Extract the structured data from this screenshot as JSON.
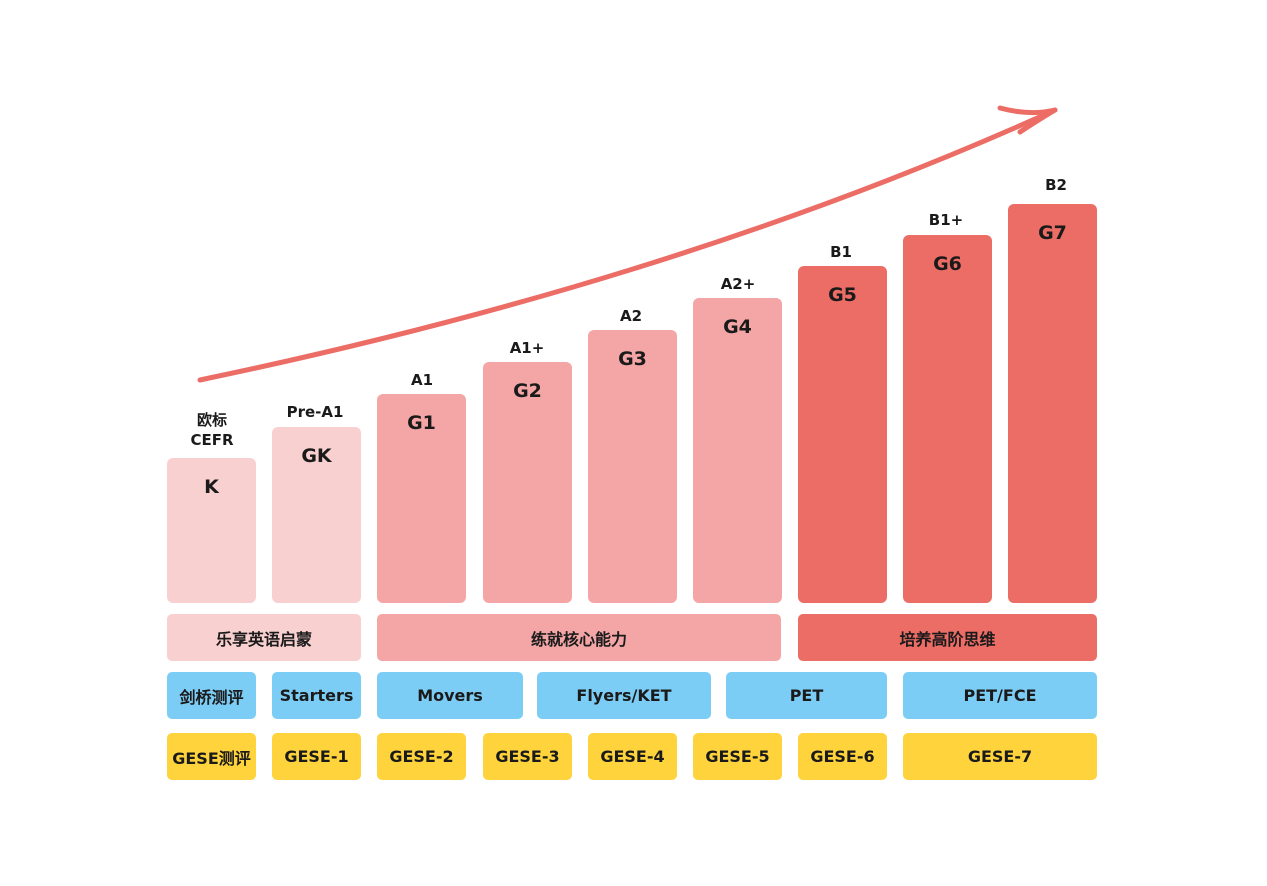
{
  "colors": {
    "light": "#f9d0d0",
    "mid": "#f4a6a6",
    "dark": "#ec6d66",
    "blue": "#7ccdf5",
    "yellow": "#ffd33b",
    "arrow": "#ec6d66"
  },
  "cefr_header": [
    "欧标",
    "CEFR"
  ],
  "levels": [
    {
      "grade": "K",
      "cefr": ""
    },
    {
      "grade": "GK",
      "cefr": "Pre-A1"
    },
    {
      "grade": "G1",
      "cefr": "A1"
    },
    {
      "grade": "G2",
      "cefr": "A1+"
    },
    {
      "grade": "G3",
      "cefr": "A2"
    },
    {
      "grade": "G4",
      "cefr": "A2+"
    },
    {
      "grade": "G5",
      "cefr": "B1"
    },
    {
      "grade": "G6",
      "cefr": "B1+"
    },
    {
      "grade": "G7",
      "cefr": "B2"
    }
  ],
  "stages": [
    "乐享英语启蒙",
    "练就核心能力",
    "培养高阶思维"
  ],
  "cambridge": [
    "剑桥测评",
    "Starters",
    "Movers",
    "Flyers/KET",
    "PET",
    "PET/FCE"
  ],
  "gese": [
    "GESE测评",
    "GESE-1",
    "GESE-2",
    "GESE-3",
    "GESE-4",
    "GESE-5",
    "GESE-6",
    "GESE-7"
  ]
}
